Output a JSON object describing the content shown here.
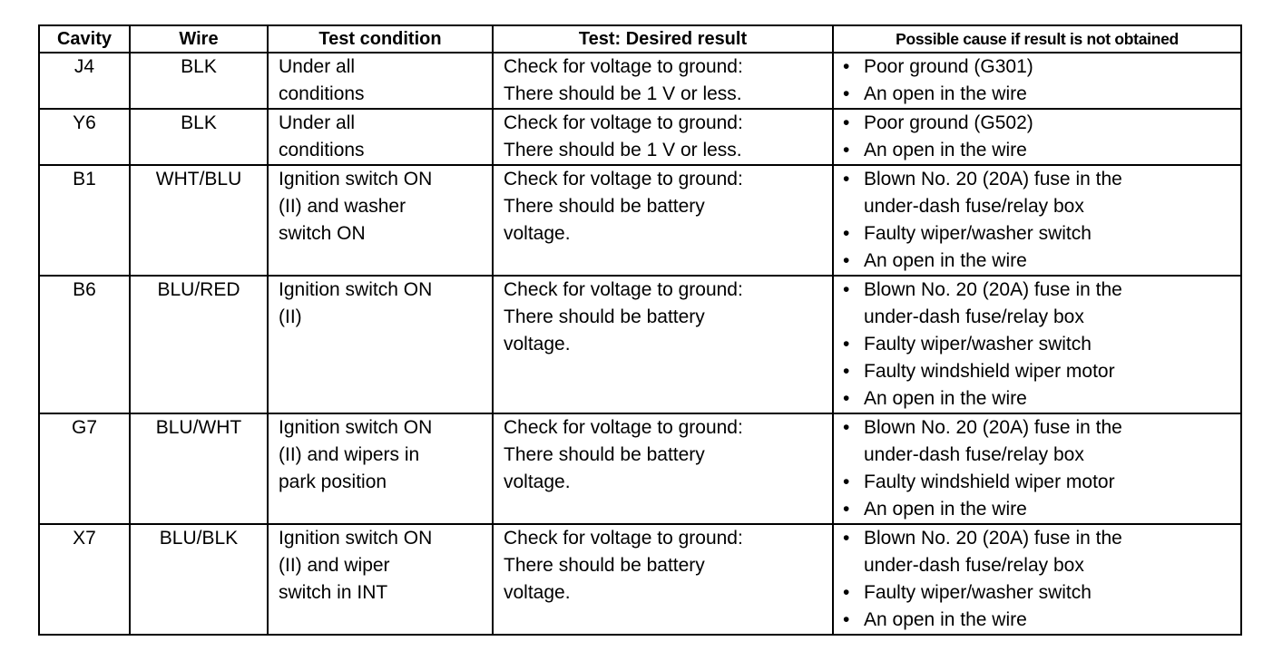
{
  "headers": [
    "Cavity",
    "Wire",
    "Test condition",
    "Test: Desired result",
    "Possible cause if result is not obtained"
  ],
  "rows": [
    {
      "cavity": "J4",
      "wire": "BLK",
      "condition": [
        "Under all",
        "conditions"
      ],
      "result": [
        "Check for voltage to ground:",
        "There should be 1 V or less."
      ],
      "causes": [
        [
          "Poor ground (G301)"
        ],
        [
          "An open in the wire"
        ]
      ]
    },
    {
      "cavity": "Y6",
      "wire": "BLK",
      "condition": [
        "Under all",
        "conditions"
      ],
      "result": [
        "Check for voltage to ground:",
        "There should be 1 V or less."
      ],
      "causes": [
        [
          "Poor ground (G502)"
        ],
        [
          "An open in the wire"
        ]
      ]
    },
    {
      "cavity": "B1",
      "wire": "WHT/BLU",
      "condition": [
        "Ignition switch ON",
        "(II) and washer",
        "switch ON"
      ],
      "result": [
        "Check for voltage to ground:",
        "There should be battery",
        "voltage."
      ],
      "causes": [
        [
          "Blown No. 20 (20A) fuse in the",
          "under-dash fuse/relay box"
        ],
        [
          "Faulty wiper/washer switch"
        ],
        [
          "An open in the wire"
        ]
      ]
    },
    {
      "cavity": "B6",
      "wire": "BLU/RED",
      "condition": [
        "Ignition switch ON",
        "(II)"
      ],
      "result": [
        "Check for voltage to ground:",
        "There should be battery",
        "voltage."
      ],
      "causes": [
        [
          "Blown No. 20 (20A) fuse in the",
          "under-dash fuse/relay box"
        ],
        [
          "Faulty wiper/washer switch"
        ],
        [
          "Faulty windshield wiper motor"
        ],
        [
          "An open in the wire"
        ]
      ]
    },
    {
      "cavity": "G7",
      "wire": "BLU/WHT",
      "condition": [
        "Ignition switch ON",
        "(II) and wipers in",
        "park position"
      ],
      "result": [
        "Check for voltage to ground:",
        "There should be battery",
        "voltage."
      ],
      "causes": [
        [
          "Blown No. 20 (20A) fuse in the",
          "under-dash fuse/relay box"
        ],
        [
          "Faulty windshield wiper motor"
        ],
        [
          "An open in the wire"
        ]
      ]
    },
    {
      "cavity": "X7",
      "wire": "BLU/BLK",
      "condition": [
        "Ignition switch ON",
        "(II) and wiper",
        "switch in INT"
      ],
      "result": [
        "Check for voltage to ground:",
        "There should be battery",
        "voltage."
      ],
      "causes": [
        [
          "Blown No. 20 (20A) fuse in the",
          "under-dash fuse/relay box"
        ],
        [
          "Faulty wiper/washer switch"
        ],
        [
          "An open in the wire"
        ]
      ]
    }
  ],
  "bullet": "•"
}
